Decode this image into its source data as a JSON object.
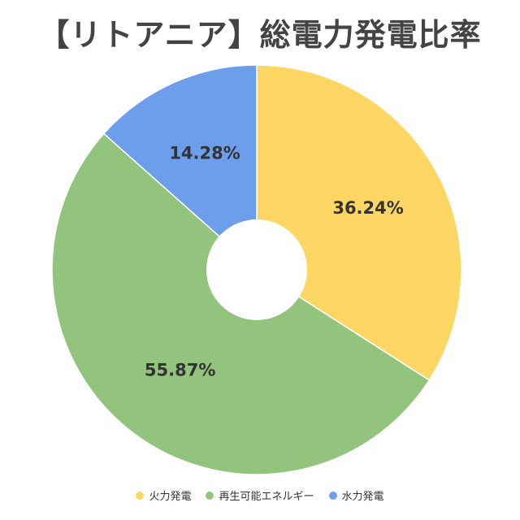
{
  "chart_data": {
    "type": "pie",
    "title": "【リトアニア】総電力発電比率",
    "donut": true,
    "slices": [
      {
        "label": "火力発電",
        "value": 36.24,
        "display": "36.24%",
        "color": "#FDD663"
      },
      {
        "label": "再生可能エネルギー",
        "value": 55.87,
        "display": "55.87%",
        "color": "#93C47D"
      },
      {
        "label": "水力発電",
        "value": 14.28,
        "display": "14.28%",
        "color": "#6D9EEB"
      }
    ],
    "legend_position": "bottom"
  }
}
